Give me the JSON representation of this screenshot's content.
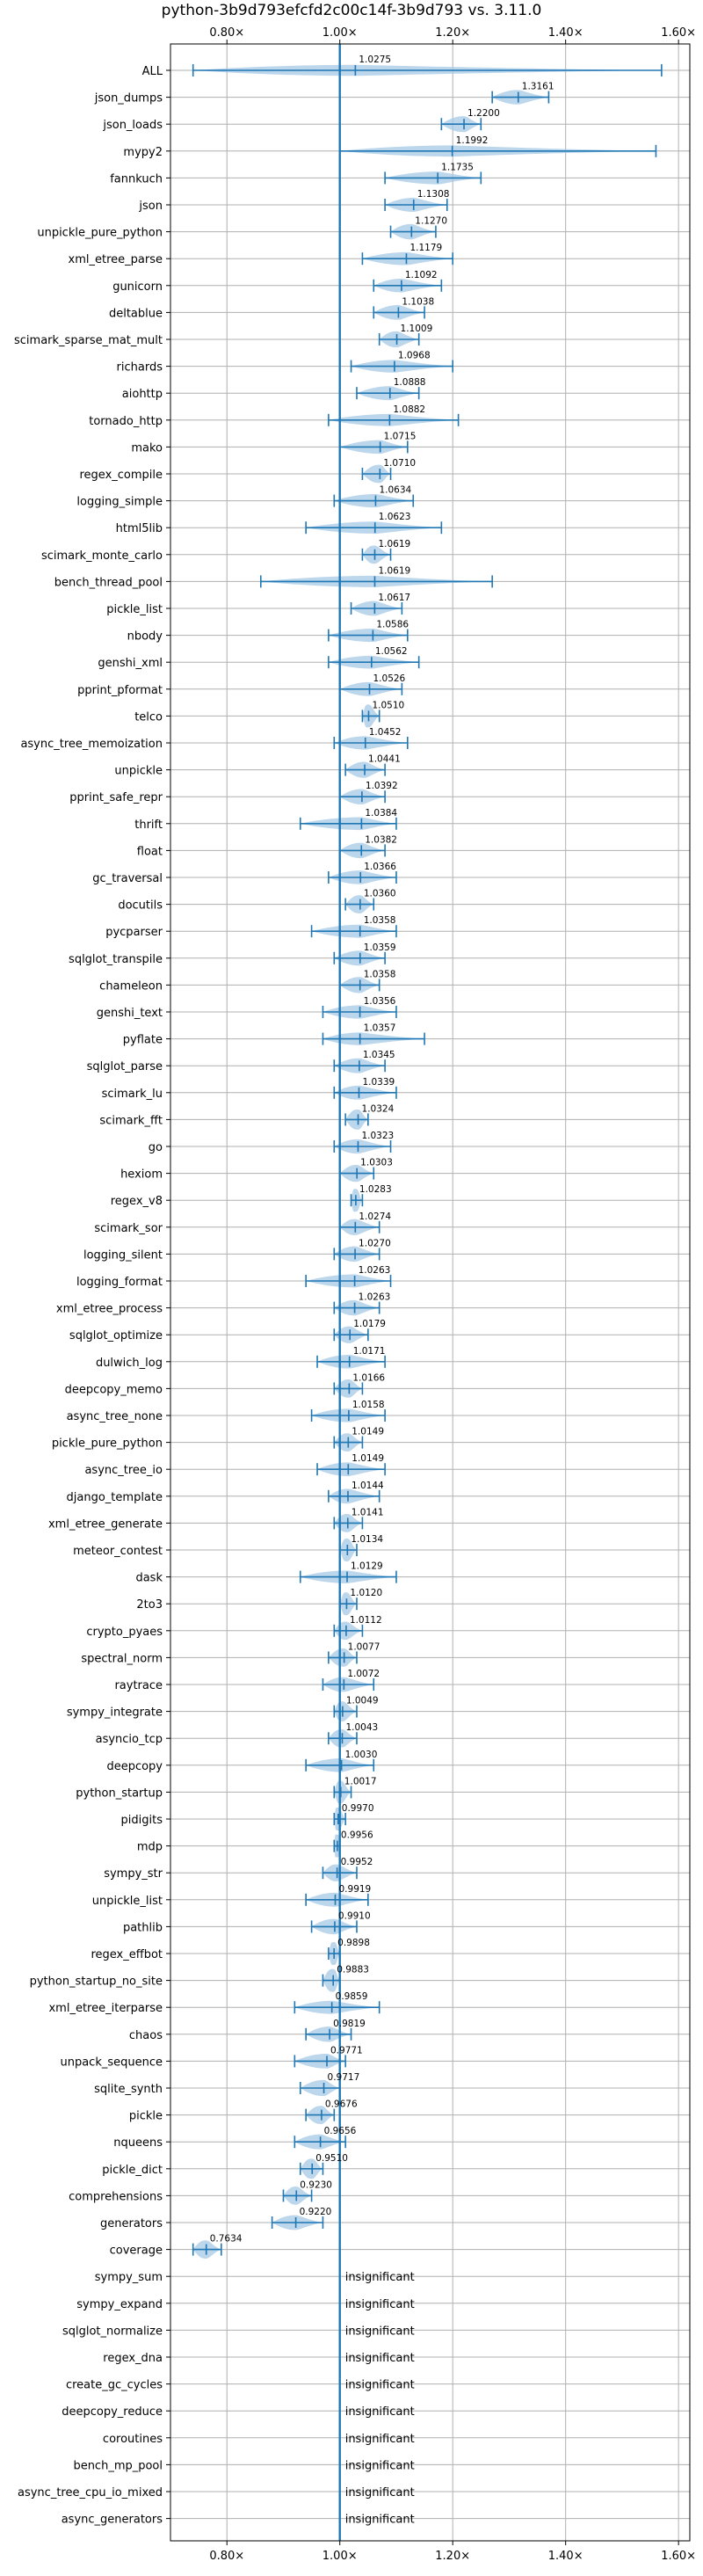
{
  "chart_data": {
    "type": "violin",
    "title": "python-3b9d793efcfd2c00c14f-3b9d793 vs. 3.11.0",
    "xlabel": "",
    "ylabel": "",
    "xlim": [
      0.7,
      1.62
    ],
    "x_ticks": [
      0.8,
      1.0,
      1.2,
      1.4,
      1.6
    ],
    "x_tick_labels": [
      "0.80×",
      "1.00×",
      "1.20×",
      "1.40×",
      "1.60×"
    ],
    "reference_line": 1.0,
    "grid": true,
    "colors": {
      "violin": "#a6c8e6",
      "line": "#1f77b4",
      "grid": "#b0b0b0"
    },
    "benchmarks": [
      {
        "name": "ALL",
        "mean": 1.0275,
        "min": 0.74,
        "max": 1.57
      },
      {
        "name": "json_dumps",
        "mean": 1.3161,
        "min": 1.27,
        "max": 1.37
      },
      {
        "name": "json_loads",
        "mean": 1.22,
        "min": 1.18,
        "max": 1.25
      },
      {
        "name": "mypy2",
        "mean": 1.1992,
        "min": 1.0,
        "max": 1.56
      },
      {
        "name": "fannkuch",
        "mean": 1.1735,
        "min": 1.08,
        "max": 1.25
      },
      {
        "name": "json",
        "mean": 1.1308,
        "min": 1.08,
        "max": 1.19
      },
      {
        "name": "unpickle_pure_python",
        "mean": 1.127,
        "min": 1.09,
        "max": 1.17
      },
      {
        "name": "xml_etree_parse",
        "mean": 1.1179,
        "min": 1.04,
        "max": 1.2
      },
      {
        "name": "gunicorn",
        "mean": 1.1092,
        "min": 1.06,
        "max": 1.18
      },
      {
        "name": "deltablue",
        "mean": 1.1038,
        "min": 1.06,
        "max": 1.15
      },
      {
        "name": "scimark_sparse_mat_mult",
        "mean": 1.1009,
        "min": 1.07,
        "max": 1.14
      },
      {
        "name": "richards",
        "mean": 1.0968,
        "min": 1.02,
        "max": 1.2
      },
      {
        "name": "aiohttp",
        "mean": 1.0888,
        "min": 1.03,
        "max": 1.14
      },
      {
        "name": "tornado_http",
        "mean": 1.0882,
        "min": 0.98,
        "max": 1.21
      },
      {
        "name": "mako",
        "mean": 1.0715,
        "min": 1.0,
        "max": 1.12
      },
      {
        "name": "regex_compile",
        "mean": 1.071,
        "min": 1.04,
        "max": 1.09
      },
      {
        "name": "logging_simple",
        "mean": 1.0634,
        "min": 0.99,
        "max": 1.13
      },
      {
        "name": "html5lib",
        "mean": 1.0623,
        "min": 0.94,
        "max": 1.18
      },
      {
        "name": "scimark_monte_carlo",
        "mean": 1.0619,
        "min": 1.04,
        "max": 1.09
      },
      {
        "name": "bench_thread_pool",
        "mean": 1.0619,
        "min": 0.86,
        "max": 1.27
      },
      {
        "name": "pickle_list",
        "mean": 1.0617,
        "min": 1.02,
        "max": 1.11
      },
      {
        "name": "nbody",
        "mean": 1.0586,
        "min": 0.98,
        "max": 1.12
      },
      {
        "name": "genshi_xml",
        "mean": 1.0562,
        "min": 0.98,
        "max": 1.14
      },
      {
        "name": "pprint_pformat",
        "mean": 1.0526,
        "min": 1.0,
        "max": 1.11
      },
      {
        "name": "telco",
        "mean": 1.051,
        "min": 1.04,
        "max": 1.07
      },
      {
        "name": "async_tree_memoization",
        "mean": 1.0452,
        "min": 0.99,
        "max": 1.12
      },
      {
        "name": "unpickle",
        "mean": 1.0441,
        "min": 1.01,
        "max": 1.08
      },
      {
        "name": "pprint_safe_repr",
        "mean": 1.0392,
        "min": 1.0,
        "max": 1.08
      },
      {
        "name": "thrift",
        "mean": 1.0384,
        "min": 0.93,
        "max": 1.1
      },
      {
        "name": "float",
        "mean": 1.0382,
        "min": 1.0,
        "max": 1.08
      },
      {
        "name": "gc_traversal",
        "mean": 1.0366,
        "min": 0.98,
        "max": 1.1
      },
      {
        "name": "docutils",
        "mean": 1.036,
        "min": 1.01,
        "max": 1.06
      },
      {
        "name": "pycparser",
        "mean": 1.0358,
        "min": 0.95,
        "max": 1.1
      },
      {
        "name": "sqlglot_transpile",
        "mean": 1.0359,
        "min": 0.99,
        "max": 1.08
      },
      {
        "name": "chameleon",
        "mean": 1.0358,
        "min": 1.0,
        "max": 1.07
      },
      {
        "name": "genshi_text",
        "mean": 1.0356,
        "min": 0.97,
        "max": 1.1
      },
      {
        "name": "pyflate",
        "mean": 1.0357,
        "min": 0.97,
        "max": 1.15
      },
      {
        "name": "sqlglot_parse",
        "mean": 1.0345,
        "min": 0.99,
        "max": 1.08
      },
      {
        "name": "scimark_lu",
        "mean": 1.0339,
        "min": 0.99,
        "max": 1.1
      },
      {
        "name": "scimark_fft",
        "mean": 1.0324,
        "min": 1.01,
        "max": 1.05
      },
      {
        "name": "go",
        "mean": 1.0323,
        "min": 0.99,
        "max": 1.09
      },
      {
        "name": "hexiom",
        "mean": 1.0303,
        "min": 1.0,
        "max": 1.06
      },
      {
        "name": "regex_v8",
        "mean": 1.0283,
        "min": 1.02,
        "max": 1.04
      },
      {
        "name": "scimark_sor",
        "mean": 1.0274,
        "min": 1.0,
        "max": 1.07
      },
      {
        "name": "logging_silent",
        "mean": 1.027,
        "min": 0.99,
        "max": 1.07
      },
      {
        "name": "logging_format",
        "mean": 1.0263,
        "min": 0.94,
        "max": 1.09
      },
      {
        "name": "xml_etree_process",
        "mean": 1.0263,
        "min": 0.99,
        "max": 1.07
      },
      {
        "name": "sqlglot_optimize",
        "mean": 1.0179,
        "min": 0.99,
        "max": 1.05
      },
      {
        "name": "dulwich_log",
        "mean": 1.0171,
        "min": 0.96,
        "max": 1.08
      },
      {
        "name": "deepcopy_memo",
        "mean": 1.0166,
        "min": 0.99,
        "max": 1.04
      },
      {
        "name": "async_tree_none",
        "mean": 1.0158,
        "min": 0.95,
        "max": 1.08
      },
      {
        "name": "pickle_pure_python",
        "mean": 1.0149,
        "min": 0.99,
        "max": 1.04
      },
      {
        "name": "async_tree_io",
        "mean": 1.0149,
        "min": 0.96,
        "max": 1.08
      },
      {
        "name": "django_template",
        "mean": 1.0144,
        "min": 0.98,
        "max": 1.07
      },
      {
        "name": "xml_etree_generate",
        "mean": 1.0141,
        "min": 0.99,
        "max": 1.04
      },
      {
        "name": "meteor_contest",
        "mean": 1.0134,
        "min": 1.0,
        "max": 1.03
      },
      {
        "name": "dask",
        "mean": 1.0129,
        "min": 0.93,
        "max": 1.1
      },
      {
        "name": "2to3",
        "mean": 1.012,
        "min": 1.0,
        "max": 1.03
      },
      {
        "name": "crypto_pyaes",
        "mean": 1.0112,
        "min": 0.99,
        "max": 1.04
      },
      {
        "name": "spectral_norm",
        "mean": 1.0077,
        "min": 0.98,
        "max": 1.03
      },
      {
        "name": "raytrace",
        "mean": 1.0072,
        "min": 0.97,
        "max": 1.06
      },
      {
        "name": "sympy_integrate",
        "mean": 1.0049,
        "min": 0.99,
        "max": 1.03
      },
      {
        "name": "asyncio_tcp",
        "mean": 1.0043,
        "min": 0.98,
        "max": 1.03
      },
      {
        "name": "deepcopy",
        "mean": 1.003,
        "min": 0.94,
        "max": 1.06
      },
      {
        "name": "python_startup",
        "mean": 1.0017,
        "min": 0.99,
        "max": 1.02
      },
      {
        "name": "pidigits",
        "mean": 0.997,
        "min": 0.99,
        "max": 1.01
      },
      {
        "name": "mdp",
        "mean": 0.9956,
        "min": 0.99,
        "max": 1.0
      },
      {
        "name": "sympy_str",
        "mean": 0.9952,
        "min": 0.97,
        "max": 1.03
      },
      {
        "name": "unpickle_list",
        "mean": 0.9919,
        "min": 0.94,
        "max": 1.05
      },
      {
        "name": "pathlib",
        "mean": 0.991,
        "min": 0.95,
        "max": 1.03
      },
      {
        "name": "regex_effbot",
        "mean": 0.9898,
        "min": 0.98,
        "max": 1.0
      },
      {
        "name": "python_startup_no_site",
        "mean": 0.9883,
        "min": 0.97,
        "max": 1.0
      },
      {
        "name": "xml_etree_iterparse",
        "mean": 0.9859,
        "min": 0.92,
        "max": 1.07
      },
      {
        "name": "chaos",
        "mean": 0.9819,
        "min": 0.94,
        "max": 1.02
      },
      {
        "name": "unpack_sequence",
        "mean": 0.9771,
        "min": 0.92,
        "max": 1.01
      },
      {
        "name": "sqlite_synth",
        "mean": 0.9717,
        "min": 0.93,
        "max": 1.0
      },
      {
        "name": "pickle",
        "mean": 0.9676,
        "min": 0.94,
        "max": 0.99
      },
      {
        "name": "nqueens",
        "mean": 0.9656,
        "min": 0.92,
        "max": 1.01
      },
      {
        "name": "pickle_dict",
        "mean": 0.951,
        "min": 0.93,
        "max": 0.97
      },
      {
        "name": "comprehensions",
        "mean": 0.923,
        "min": 0.9,
        "max": 0.95
      },
      {
        "name": "generators",
        "mean": 0.922,
        "min": 0.88,
        "max": 0.97
      },
      {
        "name": "coverage",
        "mean": 0.7634,
        "min": 0.74,
        "max": 0.79
      },
      {
        "name": "sympy_sum",
        "insignificant": true
      },
      {
        "name": "sympy_expand",
        "insignificant": true
      },
      {
        "name": "sqlglot_normalize",
        "insignificant": true
      },
      {
        "name": "regex_dna",
        "insignificant": true
      },
      {
        "name": "create_gc_cycles",
        "insignificant": true
      },
      {
        "name": "deepcopy_reduce",
        "insignificant": true
      },
      {
        "name": "coroutines",
        "insignificant": true
      },
      {
        "name": "bench_mp_pool",
        "insignificant": true
      },
      {
        "name": "async_tree_cpu_io_mixed",
        "insignificant": true
      },
      {
        "name": "async_generators",
        "insignificant": true
      }
    ],
    "insignificant_label": "insignificant"
  }
}
